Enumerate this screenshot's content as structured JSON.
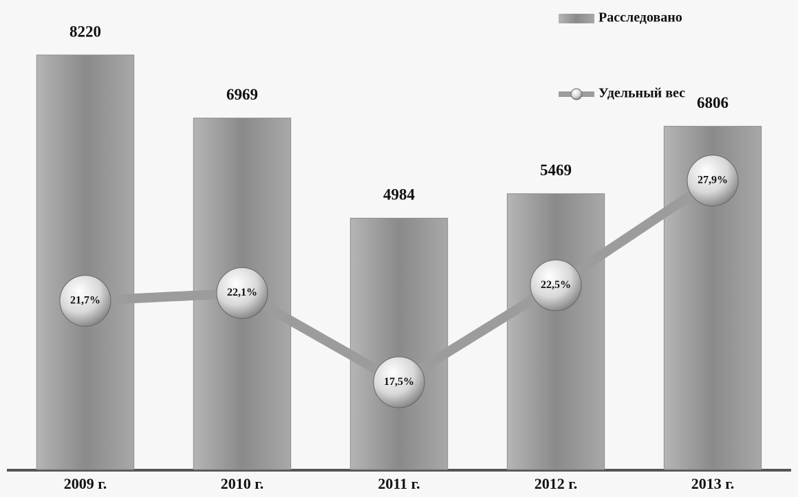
{
  "chart_data": {
    "type": "bar",
    "categories": [
      "2009 г.",
      "2010 г.",
      "2011 г.",
      "2012 г.",
      "2013 г."
    ],
    "series": [
      {
        "name": "Расследовано",
        "type": "bar",
        "color": "#8c8c8c",
        "values": [
          8220,
          6969,
          4984,
          5469,
          6806
        ]
      },
      {
        "name": "Удельный вес",
        "type": "line",
        "axis": "y2",
        "color": "#9c9c9c",
        "values": [
          21.7,
          22.1,
          17.5,
          22.5,
          27.9
        ],
        "value_labels": [
          "21,7%",
          "22,1%",
          "17,5%",
          "22,5%",
          "27,9%"
        ]
      }
    ],
    "ylim": [
      0,
      8765
    ],
    "y2lim": [
      13,
      35.8
    ],
    "legend": "top-right"
  }
}
